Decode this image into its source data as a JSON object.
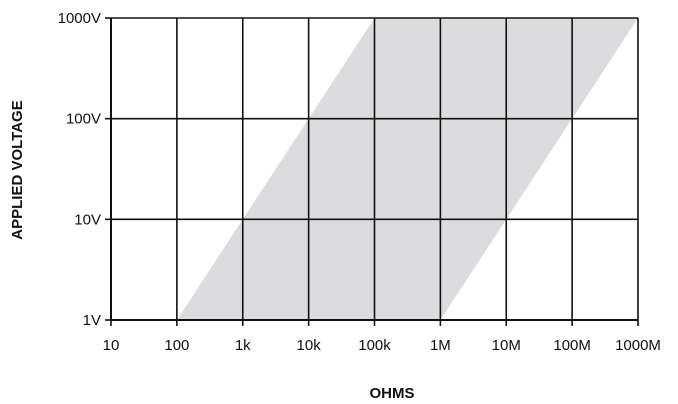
{
  "chart_data": {
    "type": "area",
    "xlabel": "OHMS",
    "ylabel": "APPLIED VOLTAGE",
    "x_scale": "log",
    "y_scale": "log",
    "xlim": [
      10,
      1000000000
    ],
    "ylim": [
      1,
      1000
    ],
    "grid": true,
    "x_ticks": [
      {
        "value": 10,
        "label": "10"
      },
      {
        "value": 100,
        "label": "100"
      },
      {
        "value": 1000,
        "label": "1k"
      },
      {
        "value": 10000,
        "label": "10k"
      },
      {
        "value": 100000,
        "label": "100k"
      },
      {
        "value": 1000000,
        "label": "1M"
      },
      {
        "value": 10000000,
        "label": "10M"
      },
      {
        "value": 100000000,
        "label": "100M"
      },
      {
        "value": 1000000000,
        "label": "1000M"
      }
    ],
    "y_ticks": [
      {
        "value": 1,
        "label": "1V"
      },
      {
        "value": 10,
        "label": "10V"
      },
      {
        "value": 100,
        "label": "100V"
      },
      {
        "value": 1000,
        "label": "1000V"
      }
    ],
    "region": {
      "color": "#dcdcde",
      "points": [
        {
          "x": 100,
          "y": 1
        },
        {
          "x": 1000000,
          "y": 1
        },
        {
          "x": 1000000000,
          "y": 1000
        },
        {
          "x": 100000,
          "y": 1000
        }
      ]
    }
  }
}
